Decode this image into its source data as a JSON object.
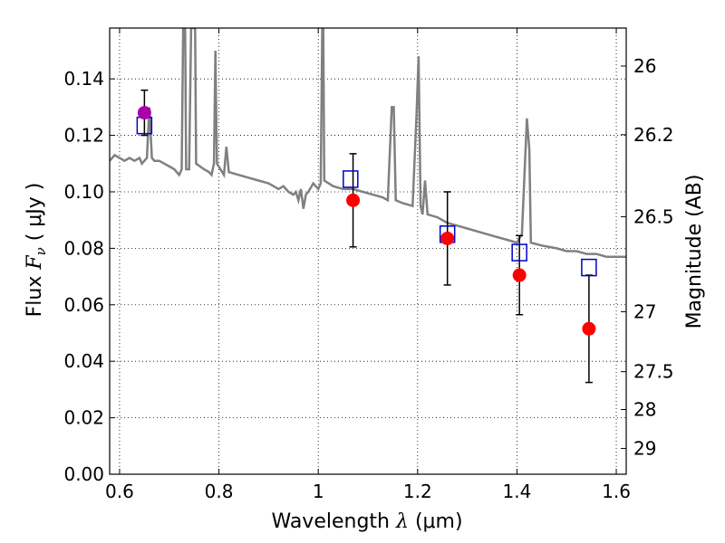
{
  "chart_data": {
    "type": "scatter",
    "xlabel_prefix": "Wavelength",
    "xlabel_symbol": "λ",
    "xlabel_unit": "(μm)",
    "ylabel_prefix": "Flux",
    "ylabel_symbol": "F",
    "ylabel_subscript": "ν",
    "ylabel_unit": "( μJy )",
    "y2label": "Magnitude (AB)",
    "xlim": [
      0.58,
      1.62
    ],
    "ylim": [
      0.0,
      0.158
    ],
    "grid": true,
    "xticks": [
      {
        "value": 0.6,
        "label": "0.6"
      },
      {
        "value": 0.8,
        "label": "0.8"
      },
      {
        "value": 1.0,
        "label": "1"
      },
      {
        "value": 1.2,
        "label": "1.2"
      },
      {
        "value": 1.4,
        "label": "1.4"
      },
      {
        "value": 1.6,
        "label": "1.6"
      }
    ],
    "yticks": [
      {
        "value": 0.0,
        "label": "0.00"
      },
      {
        "value": 0.02,
        "label": "0.02"
      },
      {
        "value": 0.04,
        "label": "0.04"
      },
      {
        "value": 0.06,
        "label": "0.06"
      },
      {
        "value": 0.08,
        "label": "0.08"
      },
      {
        "value": 0.1,
        "label": "0.10"
      },
      {
        "value": 0.12,
        "label": "0.12"
      },
      {
        "value": 0.14,
        "label": "0.14"
      }
    ],
    "y2ticks": [
      {
        "mag": 26,
        "label": "26"
      },
      {
        "mag": 26.2,
        "label": "26.2"
      },
      {
        "mag": 26.5,
        "label": "26.5"
      },
      {
        "mag": 27,
        "label": "27"
      },
      {
        "mag": 27.5,
        "label": "27.5"
      },
      {
        "mag": 28,
        "label": "28"
      },
      {
        "mag": 29,
        "label": "29"
      }
    ],
    "observed": [
      {
        "x": 0.65,
        "y": 0.128,
        "err": 0.008,
        "color": "#aa00aa"
      },
      {
        "x": 1.07,
        "y": 0.097,
        "err": 0.0165,
        "color": "#ff0000"
      },
      {
        "x": 1.26,
        "y": 0.0835,
        "err": 0.0165,
        "color": "#ff0000"
      },
      {
        "x": 1.405,
        "y": 0.0705,
        "err": 0.014,
        "color": "#ff0000"
      },
      {
        "x": 1.545,
        "y": 0.0515,
        "err": 0.019,
        "color": "#ff0000"
      }
    ],
    "model_photometry": [
      {
        "x": 0.65,
        "y": 0.1235
      },
      {
        "x": 1.065,
        "y": 0.1045
      },
      {
        "x": 1.26,
        "y": 0.085
      },
      {
        "x": 1.405,
        "y": 0.0785
      },
      {
        "x": 1.545,
        "y": 0.0732
      }
    ],
    "model_spectrum": [
      [
        0.58,
        0.111
      ],
      [
        0.59,
        0.113
      ],
      [
        0.61,
        0.111
      ],
      [
        0.62,
        0.112
      ],
      [
        0.63,
        0.111
      ],
      [
        0.64,
        0.112
      ],
      [
        0.645,
        0.11
      ],
      [
        0.655,
        0.112
      ],
      [
        0.66,
        0.13
      ],
      [
        0.665,
        0.112
      ],
      [
        0.67,
        0.111
      ],
      [
        0.68,
        0.111
      ],
      [
        0.69,
        0.11
      ],
      [
        0.7,
        0.109
      ],
      [
        0.71,
        0.108
      ],
      [
        0.72,
        0.106
      ],
      [
        0.725,
        0.108
      ],
      [
        0.728,
        0.158
      ],
      [
        0.732,
        0.158
      ],
      [
        0.734,
        0.108
      ],
      [
        0.74,
        0.108
      ],
      [
        0.744,
        0.158
      ],
      [
        0.752,
        0.158
      ],
      [
        0.754,
        0.11
      ],
      [
        0.77,
        0.108
      ],
      [
        0.78,
        0.107
      ],
      [
        0.785,
        0.106
      ],
      [
        0.79,
        0.11
      ],
      [
        0.793,
        0.15
      ],
      [
        0.796,
        0.11
      ],
      [
        0.81,
        0.106
      ],
      [
        0.815,
        0.116
      ],
      [
        0.82,
        0.107
      ],
      [
        0.84,
        0.106
      ],
      [
        0.86,
        0.105
      ],
      [
        0.88,
        0.104
      ],
      [
        0.9,
        0.103
      ],
      [
        0.91,
        0.102
      ],
      [
        0.92,
        0.101
      ],
      [
        0.93,
        0.102
      ],
      [
        0.94,
        0.1
      ],
      [
        0.95,
        0.099
      ],
      [
        0.955,
        0.1
      ],
      [
        0.96,
        0.097
      ],
      [
        0.965,
        0.101
      ],
      [
        0.97,
        0.094
      ],
      [
        0.975,
        0.099
      ],
      [
        0.98,
        0.1
      ],
      [
        0.99,
        0.103
      ],
      [
        1.0,
        0.101
      ],
      [
        1.005,
        0.103
      ],
      [
        1.008,
        0.158
      ],
      [
        1.01,
        0.158
      ],
      [
        1.012,
        0.104
      ],
      [
        1.03,
        0.102
      ],
      [
        1.05,
        0.101
      ],
      [
        1.07,
        0.101
      ],
      [
        1.09,
        0.1
      ],
      [
        1.11,
        0.099
      ],
      [
        1.13,
        0.098
      ],
      [
        1.14,
        0.097
      ],
      [
        1.148,
        0.13
      ],
      [
        1.152,
        0.13
      ],
      [
        1.156,
        0.097
      ],
      [
        1.17,
        0.096
      ],
      [
        1.19,
        0.095
      ],
      [
        1.198,
        0.128
      ],
      [
        1.202,
        0.148
      ],
      [
        1.206,
        0.095
      ],
      [
        1.21,
        0.092
      ],
      [
        1.215,
        0.104
      ],
      [
        1.22,
        0.092
      ],
      [
        1.24,
        0.091
      ],
      [
        1.26,
        0.089
      ],
      [
        1.28,
        0.088
      ],
      [
        1.3,
        0.087
      ],
      [
        1.32,
        0.086
      ],
      [
        1.34,
        0.085
      ],
      [
        1.36,
        0.084
      ],
      [
        1.38,
        0.083
      ],
      [
        1.4,
        0.082
      ],
      [
        1.41,
        0.085
      ],
      [
        1.42,
        0.126
      ],
      [
        1.425,
        0.115
      ],
      [
        1.428,
        0.082
      ],
      [
        1.45,
        0.081
      ],
      [
        1.48,
        0.08
      ],
      [
        1.5,
        0.079
      ],
      [
        1.52,
        0.079
      ],
      [
        1.54,
        0.078
      ],
      [
        1.56,
        0.078
      ],
      [
        1.58,
        0.077
      ],
      [
        1.6,
        0.077
      ],
      [
        1.62,
        0.077
      ]
    ]
  }
}
